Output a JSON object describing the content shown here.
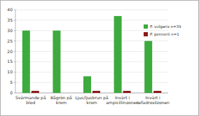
{
  "chart_data": {
    "type": "bar",
    "categories": [
      "Svärmande på blod",
      "Bågrön på krom",
      "Ljus/ljusbrun på krom",
      "Invärt i ampicillinzonen",
      "Invärt i cefadroxilzonen"
    ],
    "series": [
      {
        "name": "P. vulgaris n=39",
        "color": "#3daa3d",
        "values": [
          30,
          30,
          8,
          37,
          25
        ]
      },
      {
        "name": "P. pennerii n=1",
        "color": "#8b1a1a",
        "values": [
          1,
          0,
          1,
          1,
          1
        ]
      }
    ],
    "ylim": [
      0,
      40
    ],
    "yticks": [
      0,
      5,
      10,
      15,
      20,
      25,
      30,
      35,
      40
    ],
    "grid": true,
    "legend": "upper right"
  }
}
